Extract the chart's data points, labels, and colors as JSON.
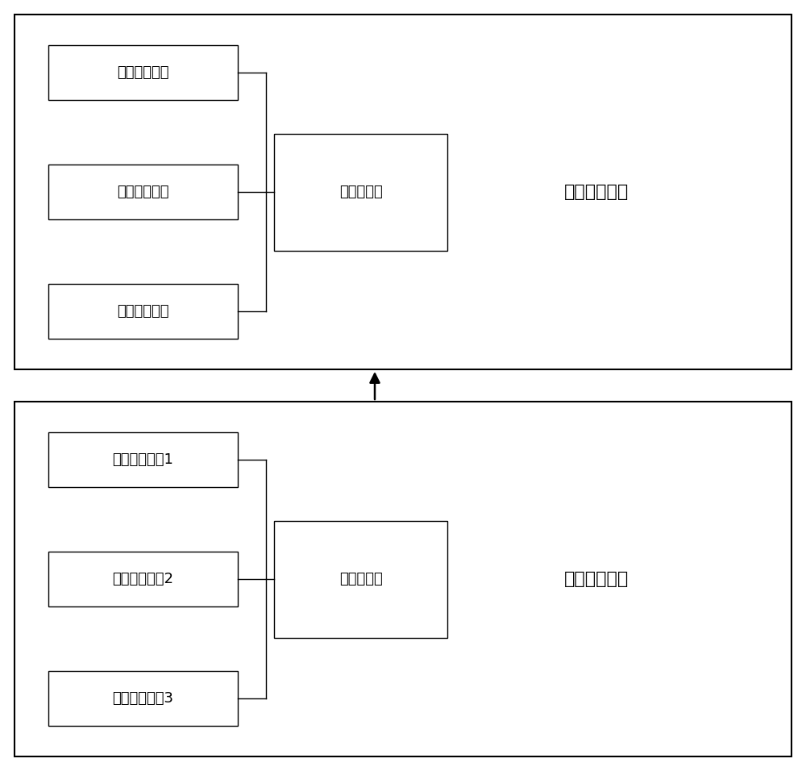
{
  "bg_color": "#ffffff",
  "border_color": "#000000",
  "box_color": "#ffffff",
  "text_color": "#000000",
  "top_cluster_label": "高频存储魆群",
  "bottom_cluster_label": "备份存储魆群",
  "top_data_nodes": [
    "高频数据节点",
    "高频数据节点",
    "高频数据节点"
  ],
  "top_master_node": "高频主节点",
  "bottom_data_nodes": [
    "备份数据节点1",
    "备份数据节点2",
    "备份数据节点3"
  ],
  "bottom_master_node": "备份主节点",
  "font_size": 13,
  "cluster_label_font_size": 16
}
